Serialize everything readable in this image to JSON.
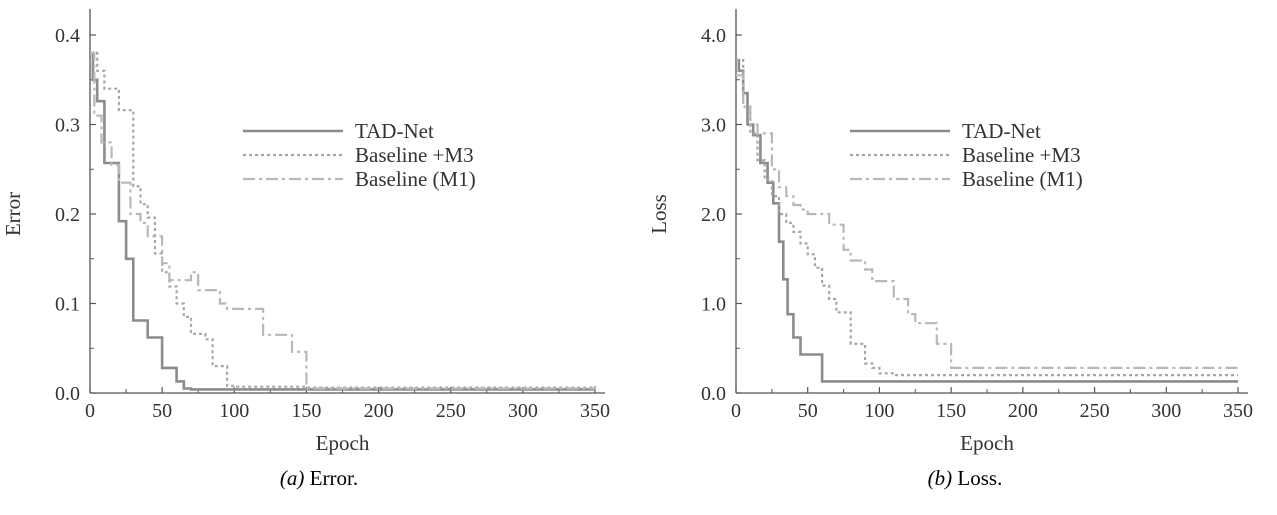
{
  "chart_data": [
    {
      "type": "line",
      "caption_prefix": "(a)",
      "caption_text": "Error.",
      "xlabel": "Epoch",
      "ylabel": "Error",
      "xlim": [
        0,
        350
      ],
      "ylim": [
        0,
        0.4
      ],
      "xticks": [
        0,
        50,
        100,
        150,
        200,
        250,
        300,
        350
      ],
      "yticks": [
        0.0,
        0.1,
        0.2,
        0.3,
        0.4
      ],
      "ytick_labels": [
        "0.0",
        "0.1",
        "0.2",
        "0.3",
        "0.4"
      ],
      "grid": false,
      "legend_position": "upper-right",
      "series": [
        {
          "name": "TAD-Net",
          "style": "solid",
          "color": "#8c8c8c",
          "x": [
            0,
            2,
            5,
            10,
            15,
            20,
            25,
            30,
            35,
            40,
            45,
            50,
            55,
            60,
            65,
            70,
            80,
            350
          ],
          "y": [
            0.38,
            0.35,
            0.326,
            0.257,
            0.257,
            0.192,
            0.15,
            0.081,
            0.081,
            0.062,
            0.062,
            0.028,
            0.028,
            0.013,
            0.005,
            0.004,
            0.004,
            0.004
          ]
        },
        {
          "name": "Baseline +M3",
          "style": "dotted",
          "color": "#a6a6a6",
          "x": [
            0,
            5,
            10,
            15,
            20,
            25,
            30,
            35,
            40,
            45,
            50,
            55,
            60,
            65,
            70,
            75,
            80,
            85,
            90,
            95,
            100,
            150,
            350
          ],
          "y": [
            0.38,
            0.36,
            0.34,
            0.34,
            0.316,
            0.316,
            0.231,
            0.211,
            0.196,
            0.156,
            0.135,
            0.119,
            0.1,
            0.085,
            0.066,
            0.066,
            0.06,
            0.03,
            0.03,
            0.008,
            0.007,
            0.006,
            0.006
          ]
        },
        {
          "name": "Baseline (M1)",
          "style": "dashdot",
          "color": "#b8b8b8",
          "x": [
            0,
            3,
            8,
            15,
            20,
            28,
            35,
            40,
            45,
            50,
            55,
            60,
            70,
            75,
            85,
            90,
            95,
            100,
            110,
            120,
            130,
            140,
            145,
            150,
            350
          ],
          "y": [
            0.38,
            0.31,
            0.28,
            0.255,
            0.235,
            0.2,
            0.19,
            0.175,
            0.175,
            0.145,
            0.126,
            0.126,
            0.135,
            0.115,
            0.115,
            0.1,
            0.094,
            0.094,
            0.094,
            0.065,
            0.065,
            0.046,
            0.046,
            0.005,
            0.008
          ]
        }
      ]
    },
    {
      "type": "line",
      "caption_prefix": "(b)",
      "caption_text": "Loss.",
      "xlabel": "Epoch",
      "ylabel": "Loss",
      "xlim": [
        0,
        350
      ],
      "ylim": [
        0,
        4.0
      ],
      "xticks": [
        0,
        50,
        100,
        150,
        200,
        250,
        300,
        350
      ],
      "yticks": [
        0.0,
        1.0,
        2.0,
        3.0,
        4.0
      ],
      "ytick_labels": [
        "0.0",
        "1.0",
        "2.0",
        "3.0",
        "4.0"
      ],
      "grid": false,
      "legend_position": "upper-right",
      "series": [
        {
          "name": "TAD-Net",
          "style": "solid",
          "color": "#8c8c8c",
          "x": [
            0,
            2,
            5,
            8,
            12,
            17,
            22,
            26,
            30,
            33,
            36,
            40,
            45,
            50,
            55,
            60,
            350
          ],
          "y": [
            3.72,
            3.6,
            3.35,
            3.0,
            2.88,
            2.57,
            2.35,
            2.12,
            1.69,
            1.27,
            0.88,
            0.62,
            0.43,
            0.43,
            0.43,
            0.13,
            0.13
          ]
        },
        {
          "name": "Baseline +M3",
          "style": "dotted",
          "color": "#a6a6a6",
          "x": [
            0,
            5,
            10,
            15,
            20,
            25,
            30,
            35,
            40,
            45,
            50,
            55,
            60,
            65,
            70,
            75,
            80,
            85,
            90,
            95,
            100,
            110,
            350
          ],
          "y": [
            3.72,
            3.2,
            2.9,
            2.6,
            2.38,
            2.2,
            2.0,
            1.9,
            1.8,
            1.67,
            1.55,
            1.4,
            1.2,
            1.05,
            0.9,
            0.9,
            0.55,
            0.55,
            0.33,
            0.28,
            0.22,
            0.2,
            0.2
          ]
        },
        {
          "name": "Baseline (M1)",
          "style": "dashdot",
          "color": "#b8b8b8",
          "x": [
            0,
            5,
            10,
            15,
            20,
            25,
            30,
            35,
            40,
            45,
            50,
            55,
            65,
            75,
            80,
            90,
            95,
            110,
            120,
            125,
            140,
            150,
            160,
            350
          ],
          "y": [
            3.55,
            3.2,
            3.0,
            2.9,
            2.9,
            2.5,
            2.3,
            2.2,
            2.1,
            2.05,
            2.0,
            2.0,
            1.88,
            1.6,
            1.48,
            1.38,
            1.25,
            1.05,
            0.88,
            0.78,
            0.55,
            0.28,
            0.28,
            0.28
          ]
        }
      ]
    }
  ]
}
